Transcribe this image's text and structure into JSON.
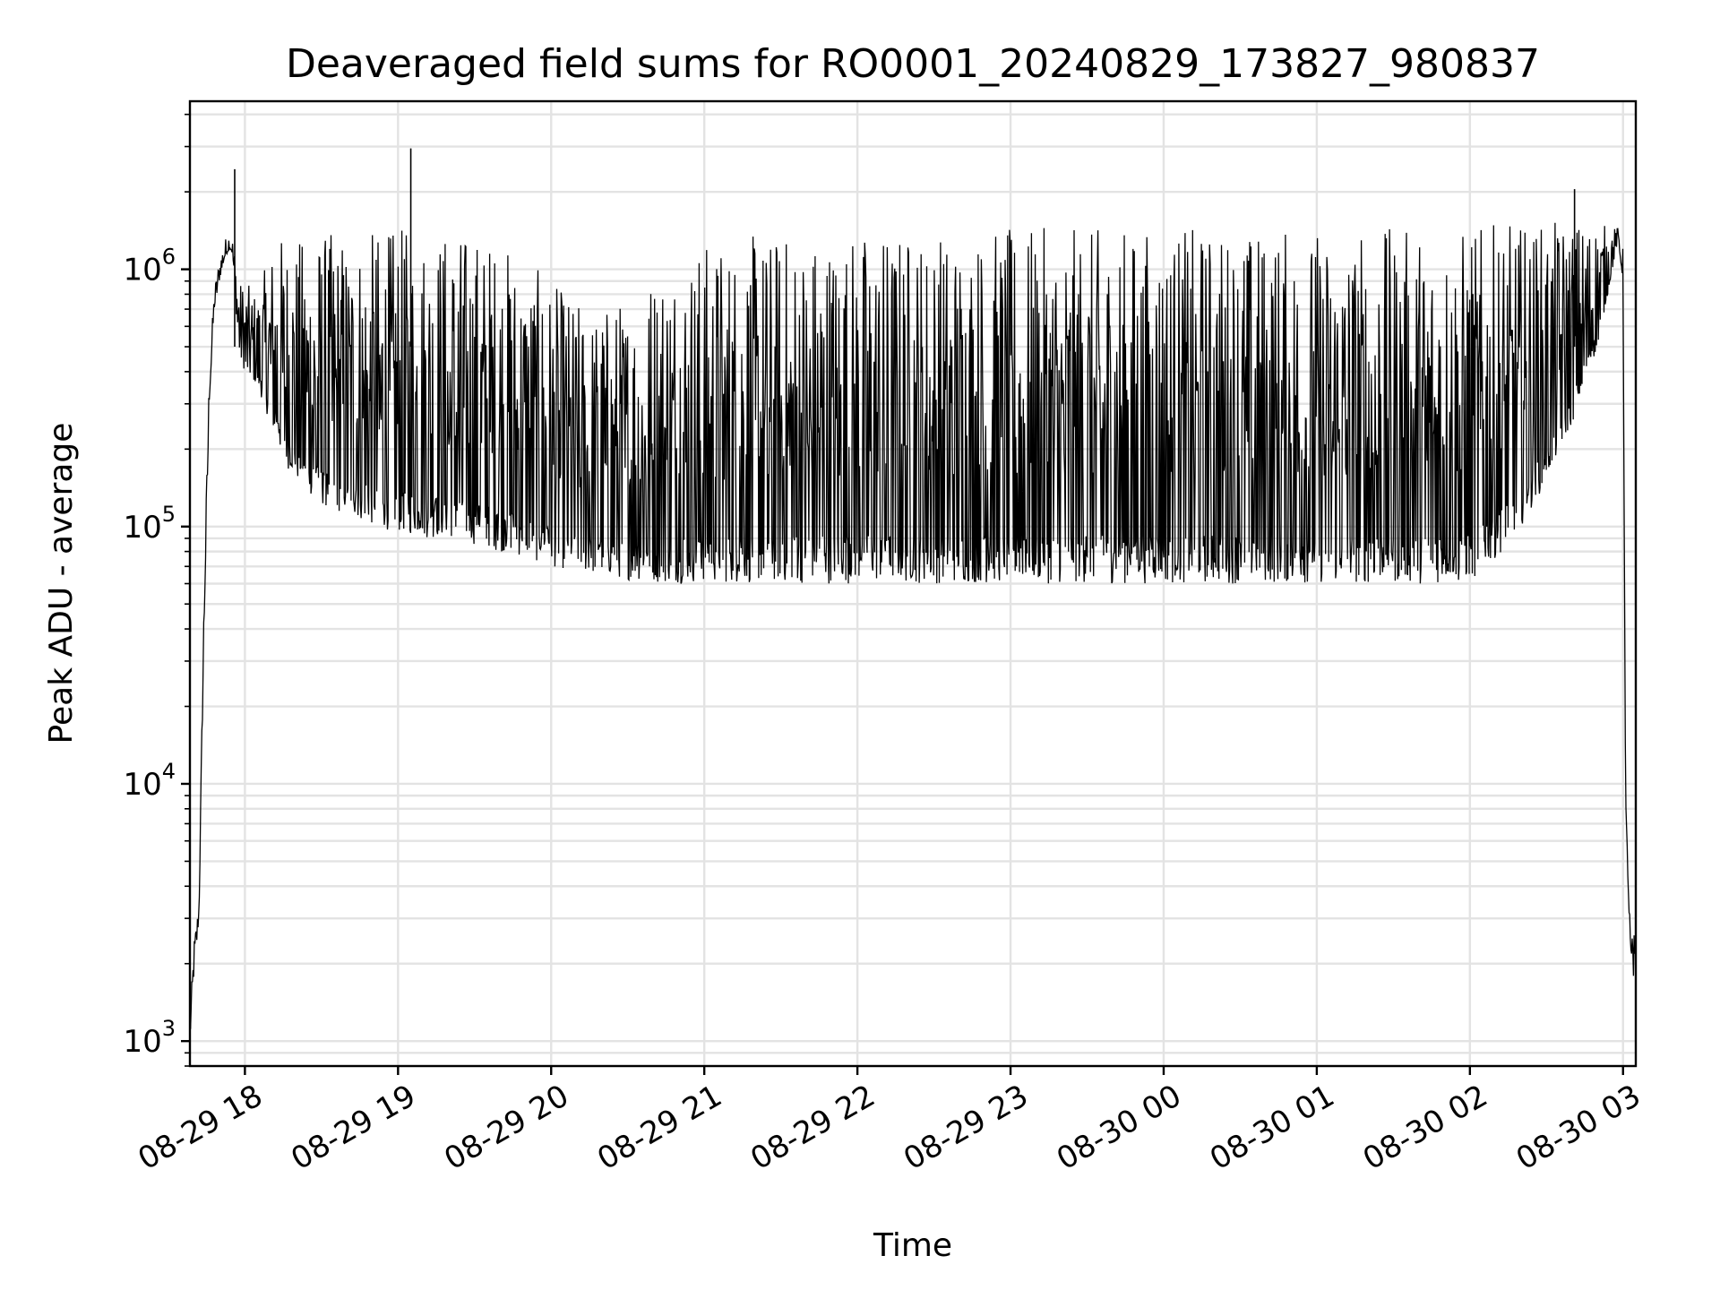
{
  "chart_data": {
    "type": "line",
    "title": "Deaveraged field sums for RO0001_20240829_173827_980837",
    "xlabel": "Time",
    "ylabel": "Peak ADU - average",
    "yscale": "log",
    "ylim": [
      800,
      4500000
    ],
    "xlim": [
      "2024-08-29 17:38:27",
      "2024-08-30 03:05:00"
    ],
    "grid": true,
    "line_color": "#000000",
    "x_ticks": [
      {
        "t": "2024-08-29 18:00",
        "label": "08-29 18"
      },
      {
        "t": "2024-08-29 19:00",
        "label": "08-29 19"
      },
      {
        "t": "2024-08-29 20:00",
        "label": "08-29 20"
      },
      {
        "t": "2024-08-29 21:00",
        "label": "08-29 21"
      },
      {
        "t": "2024-08-29 22:00",
        "label": "08-29 22"
      },
      {
        "t": "2024-08-29 23:00",
        "label": "08-29 23"
      },
      {
        "t": "2024-08-30 00:00",
        "label": "08-30 00"
      },
      {
        "t": "2024-08-30 01:00",
        "label": "08-30 01"
      },
      {
        "t": "2024-08-30 02:00",
        "label": "08-30 02"
      },
      {
        "t": "2024-08-30 03:00",
        "label": "08-30 03"
      }
    ],
    "y_ticks": [
      {
        "value": 1000,
        "base": "10",
        "exp": "3"
      },
      {
        "value": 10000,
        "base": "10",
        "exp": "4"
      },
      {
        "value": 100000,
        "base": "10",
        "exp": "5"
      },
      {
        "value": 1000000,
        "base": "10",
        "exp": "6"
      }
    ],
    "series": [
      {
        "x": [
          "2024-08-29 17:38:27",
          "2024-08-29 17:40",
          "2024-08-29 17:42",
          "2024-08-29 17:44",
          "2024-08-29 17:46",
          "2024-08-29 17:48",
          "2024-08-29 17:50",
          "2024-08-29 17:52",
          "2024-08-29 17:54",
          "2024-08-29 17:55",
          "2024-08-29 17:56",
          "2024-08-29 17:57",
          "2024-08-29 17:58",
          "2024-08-29 18:00",
          "2024-08-29 18:05",
          "2024-08-29 18:10",
          "2024-08-29 18:15",
          "2024-08-29 18:20",
          "2024-08-29 18:30",
          "2024-08-29 18:40",
          "2024-08-29 18:50",
          "2024-08-29 19:00",
          "2024-08-29 19:10",
          "2024-08-29 19:20",
          "2024-08-29 19:30",
          "2024-08-29 19:40",
          "2024-08-29 19:50",
          "2024-08-29 20:00",
          "2024-08-29 20:15",
          "2024-08-29 20:30",
          "2024-08-29 20:45",
          "2024-08-29 21:00",
          "2024-08-29 21:30",
          "2024-08-29 22:00",
          "2024-08-29 22:30",
          "2024-08-29 23:00",
          "2024-08-29 23:30",
          "2024-08-30 00:00",
          "2024-08-30 00:30",
          "2024-08-30 01:00",
          "2024-08-30 01:30",
          "2024-08-30 02:00",
          "2024-08-30 02:10",
          "2024-08-30 02:20",
          "2024-08-30 02:30",
          "2024-08-30 02:40",
          "2024-08-30 02:50",
          "2024-08-30 02:55",
          "2024-08-30 02:58",
          "2024-08-30 03:00",
          "2024-08-30 03:01",
          "2024-08-30 03:03",
          "2024-08-30 03:05"
        ],
        "lower": [
          1000,
          1800,
          3000,
          40000,
          300000,
          700000,
          900000,
          1100000,
          1200000,
          1150000,
          800000,
          600000,
          450000,
          400000,
          350000,
          250000,
          180000,
          150000,
          120000,
          110000,
          100000,
          95000,
          90000,
          90000,
          85000,
          80000,
          75000,
          70000,
          65000,
          62000,
          60000,
          60000,
          60000,
          60000,
          60000,
          60000,
          60000,
          60000,
          60000,
          60000,
          60000,
          60000,
          75000,
          100000,
          150000,
          250000,
          500000,
          900000,
          1300000,
          900000,
          8000,
          2000,
          1500
        ],
        "upper": [
          1200,
          2500,
          3500,
          60000,
          400000,
          850000,
          1100000,
          1300000,
          1400000,
          1350000,
          1200000,
          1000000,
          900000,
          900000,
          800000,
          1200000,
          1400000,
          1300000,
          1400000,
          1400000,
          1400000,
          1450000,
          1450000,
          1450000,
          1400000,
          1300000,
          1100000,
          900000,
          700000,
          800000,
          1200000,
          1300000,
          1400000,
          1450000,
          1450000,
          1450000,
          1450000,
          1450000,
          1450000,
          1450000,
          1450000,
          1450000,
          1500000,
          1500000,
          1500000,
          1550000,
          1550000,
          1450000,
          1450000,
          1200000,
          9000,
          2500,
          2700
        ],
        "spikes": [
          {
            "t": "2024-08-29 17:56",
            "value": 2450000
          },
          {
            "t": "2024-08-29 19:05",
            "value": 2950000
          },
          {
            "t": "2024-08-30 02:41",
            "value": 2050000
          }
        ]
      }
    ]
  }
}
